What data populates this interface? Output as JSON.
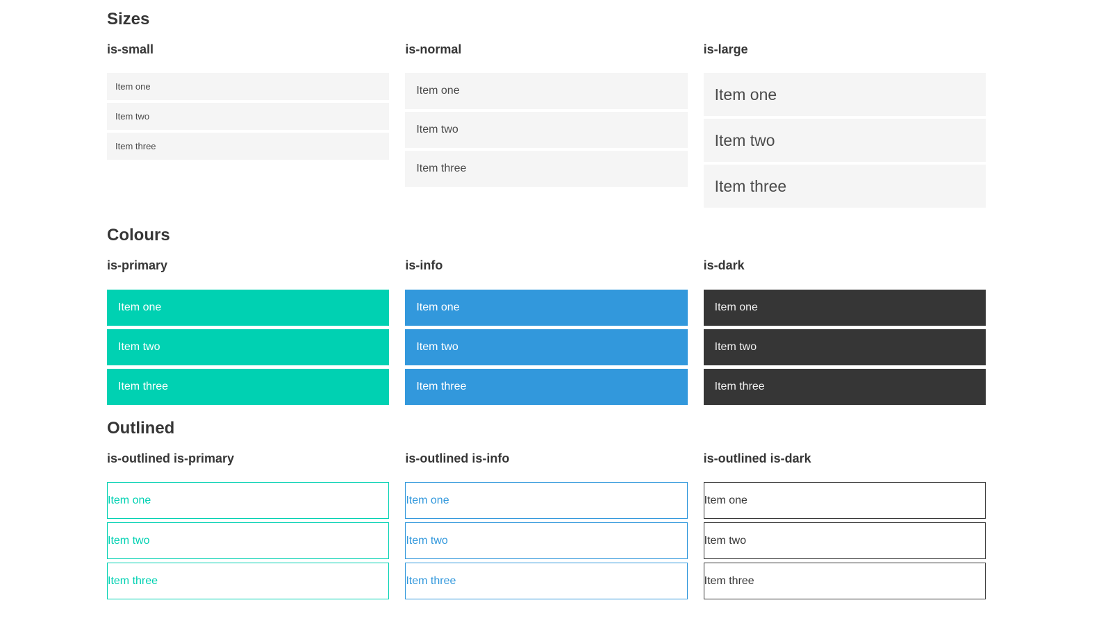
{
  "sections": [
    {
      "title": "Sizes",
      "groups": [
        {
          "label": "is-small",
          "items": [
            "Item one",
            "Item two",
            "Item three"
          ]
        },
        {
          "label": "is-normal",
          "items": [
            "Item one",
            "Item two",
            "Item three"
          ]
        },
        {
          "label": "is-large",
          "items": [
            "Item one",
            "Item two",
            "Item three"
          ]
        }
      ]
    },
    {
      "title": "Colours",
      "groups": [
        {
          "label": "is-primary",
          "items": [
            "Item one",
            "Item two",
            "Item three"
          ]
        },
        {
          "label": "is-info",
          "items": [
            "Item one",
            "Item two",
            "Item three"
          ]
        },
        {
          "label": "is-dark",
          "items": [
            "Item one",
            "Item two",
            "Item three"
          ]
        }
      ]
    },
    {
      "title": "Outlined",
      "groups": [
        {
          "label": "is-outlined is-primary",
          "items": [
            "Item one",
            "Item two",
            "Item three"
          ]
        },
        {
          "label": "is-outlined is-info",
          "items": [
            "Item one",
            "Item two",
            "Item three"
          ]
        },
        {
          "label": "is-outlined is-dark",
          "items": [
            "Item one",
            "Item two",
            "Item three"
          ]
        }
      ]
    }
  ],
  "colors": {
    "primary": "#00d1b2",
    "info": "#3298dc",
    "dark": "#363636",
    "item-bg": "#f5f5f5",
    "item-text": "#4a4a4a",
    "heading": "#363636"
  }
}
